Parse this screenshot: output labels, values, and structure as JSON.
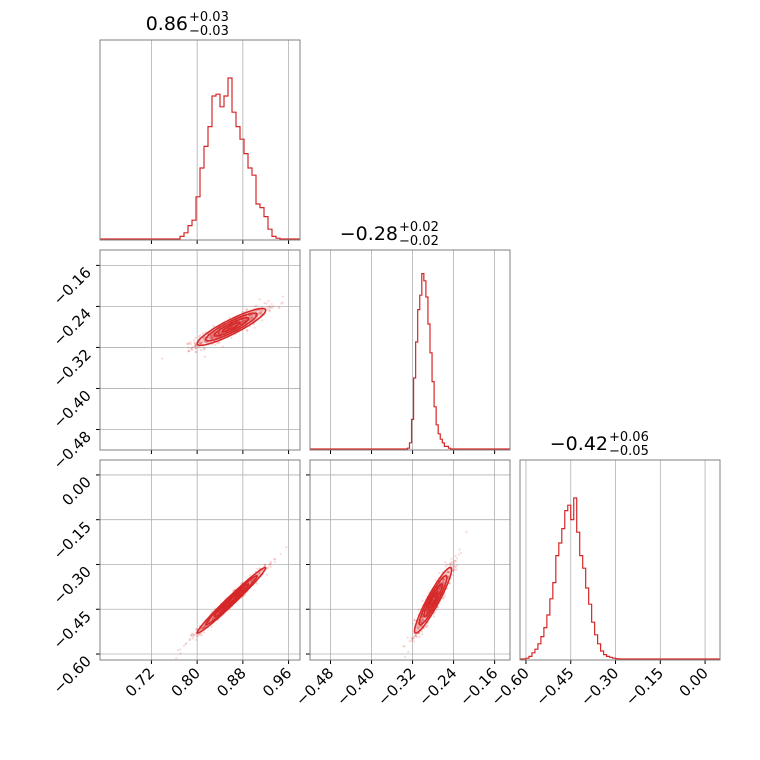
{
  "chart_data": {
    "type": "corner",
    "description_colors": {
      "series": "#d62728",
      "grid": "#b0b0b0",
      "frame": "#808080"
    },
    "grid": true,
    "titles": [
      {
        "value": "0.86",
        "plus": "+0.03",
        "minus": "−0.03"
      },
      {
        "value": "−0.28",
        "plus": "+0.02",
        "minus": "−0.02"
      },
      {
        "value": "−0.42",
        "plus": "+0.06",
        "minus": "−0.05"
      }
    ],
    "params": [
      {
        "range": [
          0.63,
          0.98
        ],
        "ticks": [
          0.72,
          0.8,
          0.88,
          0.96
        ],
        "tick_labels": [
          "0.72",
          "0.80",
          "0.88",
          "0.96"
        ]
      },
      {
        "range": [
          -0.52,
          -0.13
        ],
        "ticks": [
          -0.48,
          -0.4,
          -0.32,
          -0.24,
          -0.16
        ],
        "tick_labels": [
          "−0.48",
          "−0.40",
          "−0.32",
          "−0.24",
          "−0.16"
        ]
      },
      {
        "range": [
          -0.62,
          0.05
        ],
        "ticks": [
          -0.6,
          -0.45,
          -0.3,
          -0.15,
          0.0
        ],
        "tick_labels": [
          "−0.60",
          "−0.45",
          "−0.30",
          "−0.15",
          "0.00"
        ]
      }
    ],
    "histograms": [
      {
        "bins": [
          0.77,
          0.777,
          0.784,
          0.791,
          0.798,
          0.805,
          0.812,
          0.819,
          0.826,
          0.833,
          0.84,
          0.847,
          0.854,
          0.861,
          0.868,
          0.875,
          0.882,
          0.889,
          0.896,
          0.903,
          0.91,
          0.917,
          0.924,
          0.931,
          0.938,
          0.945
        ],
        "counts": [
          0.02,
          0.04,
          0.08,
          0.11,
          0.24,
          0.4,
          0.52,
          0.63,
          0.8,
          0.81,
          0.74,
          0.8,
          0.9,
          0.71,
          0.63,
          0.56,
          0.48,
          0.4,
          0.36,
          0.2,
          0.18,
          0.13,
          0.06,
          0.02,
          0.01
        ]
      },
      {
        "bins": [
          -0.33,
          -0.326,
          -0.322,
          -0.318,
          -0.314,
          -0.31,
          -0.306,
          -0.302,
          -0.298,
          -0.294,
          -0.29,
          -0.286,
          -0.282,
          -0.278,
          -0.274,
          -0.27,
          -0.266,
          -0.262,
          -0.258,
          -0.254,
          -0.25,
          -0.246,
          -0.242,
          -0.238,
          -0.234,
          -0.23
        ],
        "counts": [
          0.01,
          0.04,
          0.17,
          0.4,
          0.6,
          0.78,
          0.86,
          0.98,
          0.94,
          0.85,
          0.7,
          0.54,
          0.38,
          0.24,
          0.14,
          0.09,
          0.06,
          0.04,
          0.02,
          0.02,
          0.01,
          0.005,
          0.003,
          0.002,
          0.001
        ]
      },
      {
        "bins": [
          -0.6,
          -0.59,
          -0.58,
          -0.57,
          -0.56,
          -0.55,
          -0.54,
          -0.53,
          -0.52,
          -0.51,
          -0.5,
          -0.49,
          -0.48,
          -0.47,
          -0.46,
          -0.45,
          -0.44,
          -0.43,
          -0.42,
          -0.41,
          -0.4,
          -0.39,
          -0.38,
          -0.37,
          -0.36,
          -0.35,
          -0.34,
          -0.33,
          -0.32,
          -0.31,
          -0.3,
          -0.29,
          -0.28,
          -0.27
        ],
        "counts": [
          0.01,
          0.02,
          0.04,
          0.06,
          0.09,
          0.13,
          0.18,
          0.25,
          0.34,
          0.43,
          0.58,
          0.65,
          0.73,
          0.83,
          0.86,
          0.78,
          0.9,
          0.71,
          0.58,
          0.51,
          0.4,
          0.31,
          0.21,
          0.14,
          0.09,
          0.05,
          0.03,
          0.02,
          0.015,
          0.01,
          0.007,
          0.005,
          0.004
        ]
      }
    ],
    "pairs": [
      {
        "x": 0,
        "y": 1,
        "mean": [
          0.86,
          -0.28
        ],
        "sd": [
          0.03,
          0.018
        ],
        "corr": 0.9,
        "contours_sigma": [
          0.5,
          1.0,
          1.5,
          2.0
        ]
      },
      {
        "x": 0,
        "y": 2,
        "mean": [
          0.86,
          -0.42
        ],
        "sd": [
          0.03,
          0.055
        ],
        "corr": 0.985,
        "contours_sigma": [
          0.5,
          1.0,
          1.5,
          2.0
        ]
      },
      {
        "x": 1,
        "y": 2,
        "mean": [
          -0.28,
          -0.42
        ],
        "sd": [
          0.018,
          0.055
        ],
        "corr": 0.93,
        "contours_sigma": [
          0.5,
          1.0,
          1.5,
          2.0
        ]
      }
    ]
  }
}
